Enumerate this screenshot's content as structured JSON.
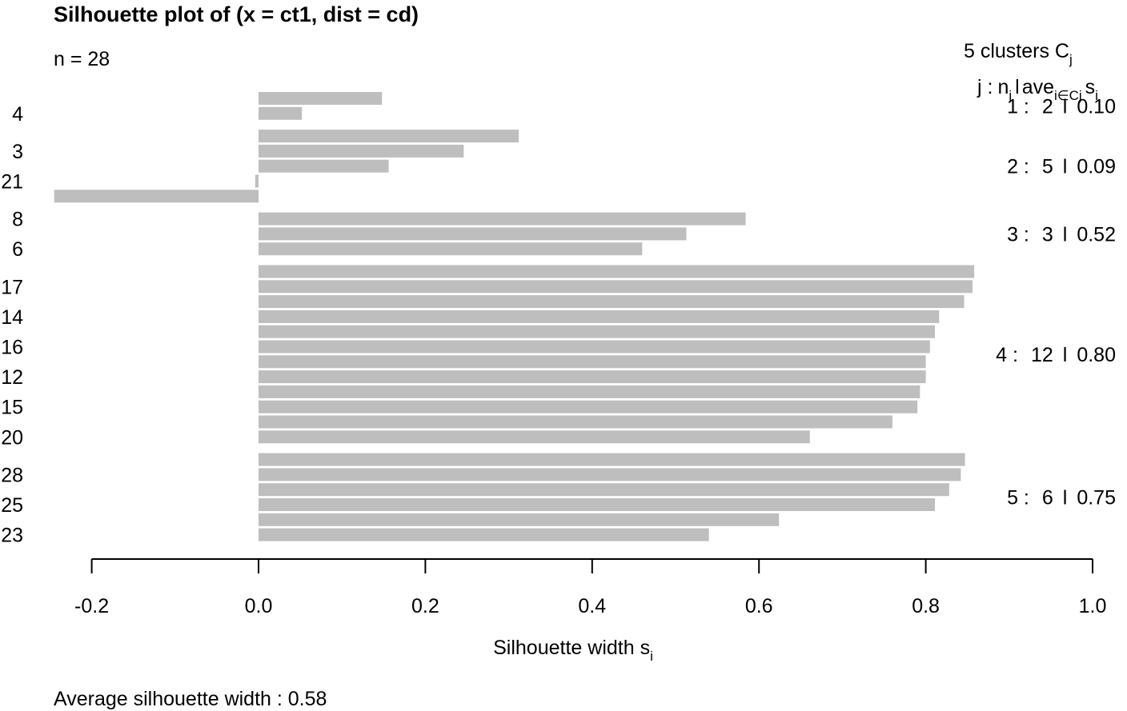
{
  "chart_data": {
    "type": "bar",
    "orientation": "horizontal",
    "title": "Silhouette plot of (x = ct1, dist = cd)",
    "subtitle": "n = 28",
    "xlabel": "Silhouette width s",
    "xlabel_sub": "i",
    "footer": "Average silhouette width :  0.58",
    "xlim": [
      -0.2,
      1.0
    ],
    "xticks": [
      "-0.2",
      "0.0",
      "0.2",
      "0.4",
      "0.6",
      "0.8",
      "1.0"
    ],
    "legend": {
      "line1": "5  clusters  C",
      "line1_sub": "j",
      "header": {
        "j": "j :",
        "n": "n",
        "n_sub": "j",
        "bar": "l",
        "ave": "ave",
        "ave_sub": "i∈Cj",
        "s": "s",
        "s_sub": "i"
      }
    },
    "bar_color": "#bebebe",
    "clusters": [
      {
        "label": "1 :",
        "n": "2",
        "ave": "0.10",
        "values": [
          0.148,
          0.052
        ]
      },
      {
        "label": "2 :",
        "n": "5",
        "ave": "0.09",
        "values": [
          0.312,
          0.246,
          0.156,
          -0.004,
          -0.245
        ]
      },
      {
        "label": "3 :",
        "n": "3",
        "ave": "0.52",
        "values": [
          0.584,
          0.513,
          0.46
        ]
      },
      {
        "label": "4 :",
        "n": "12",
        "ave": "0.80",
        "values": [
          0.858,
          0.856,
          0.846,
          0.816,
          0.811,
          0.805,
          0.8,
          0.8,
          0.793,
          0.79,
          0.76,
          0.661
        ]
      },
      {
        "label": "5 :",
        "n": "6",
        "ave": "0.75",
        "values": [
          0.847,
          0.842,
          0.828,
          0.811,
          0.624,
          0.54
        ]
      }
    ],
    "row_labels": [
      {
        "text": "4",
        "row": 2
      },
      {
        "text": "3",
        "row": 4
      },
      {
        "text": "21",
        "row": 6
      },
      {
        "text": "8",
        "row": 8
      },
      {
        "text": "6",
        "row": 10
      },
      {
        "text": "17",
        "row": 12
      },
      {
        "text": "14",
        "row": 14
      },
      {
        "text": "16",
        "row": 16
      },
      {
        "text": "12",
        "row": 18
      },
      {
        "text": "15",
        "row": 20
      },
      {
        "text": "20",
        "row": 22
      },
      {
        "text": "28",
        "row": 24
      },
      {
        "text": "25",
        "row": 26
      },
      {
        "text": "23",
        "row": 28
      }
    ]
  }
}
